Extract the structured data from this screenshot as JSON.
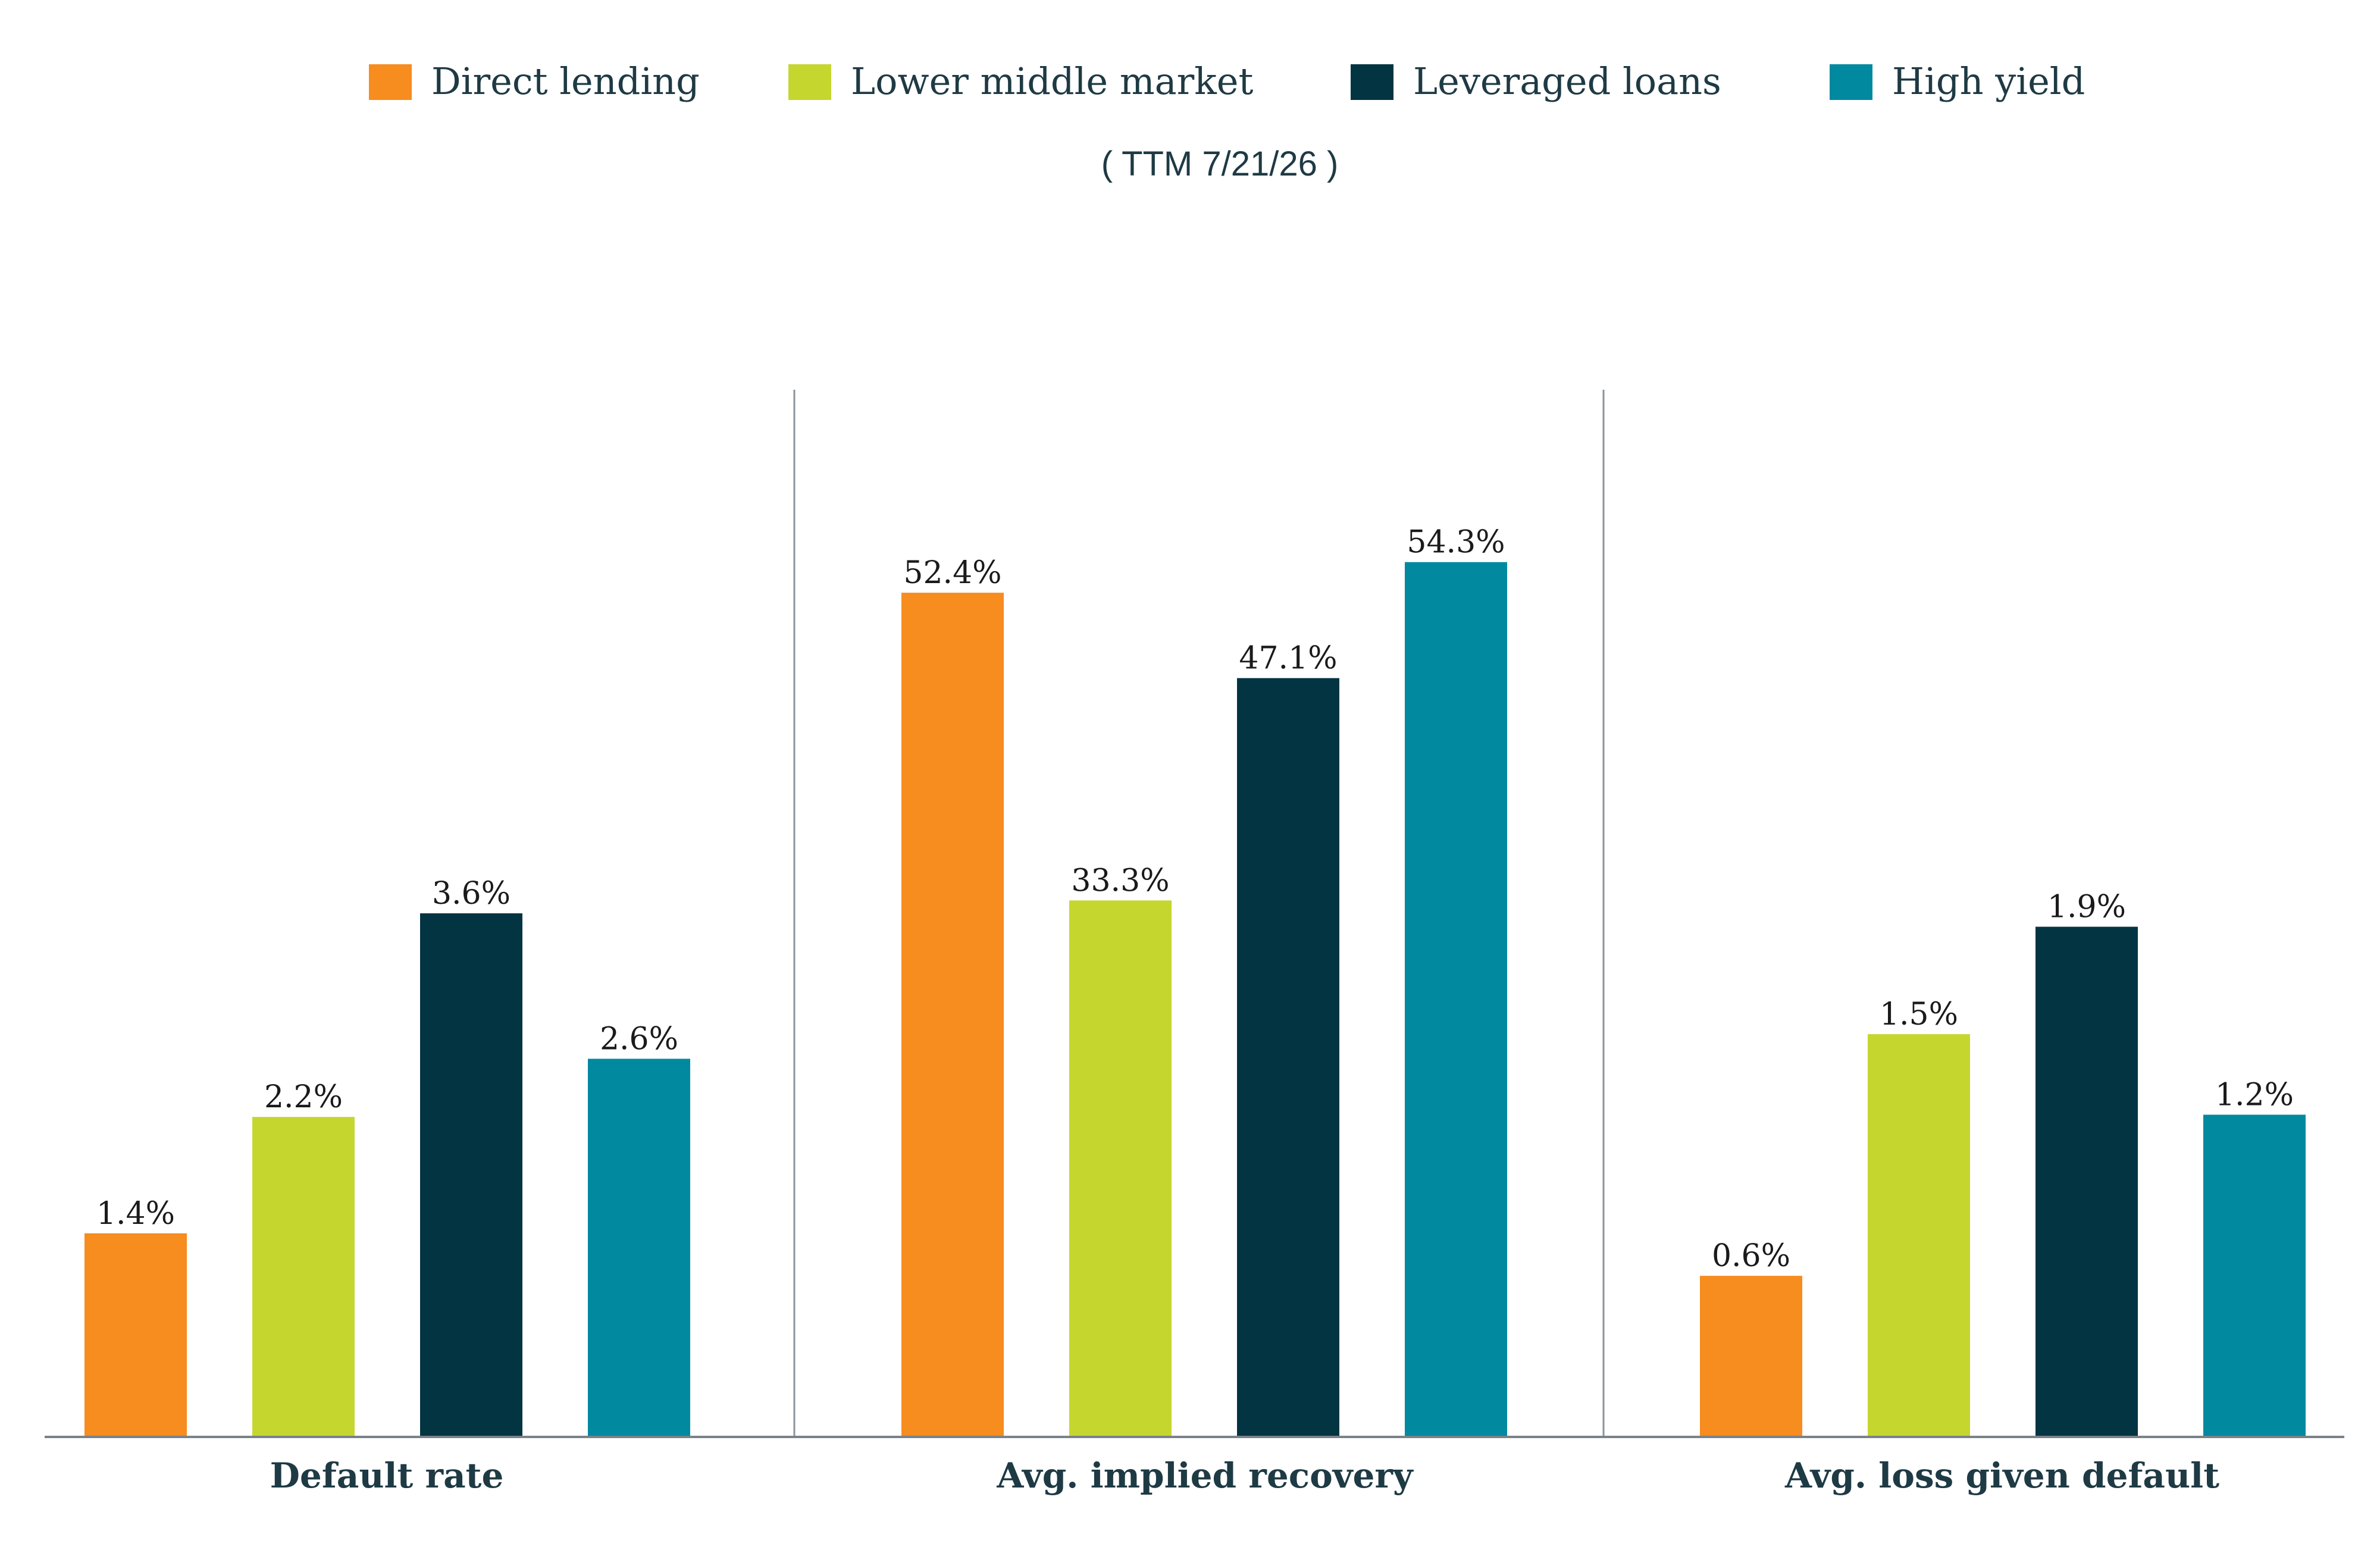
{
  "chart_data": {
    "type": "bar",
    "subtitle": "( TTM  7/21/26 )",
    "categories": [
      "Default rate",
      "Avg. implied recovery",
      "Avg. loss given default"
    ],
    "series": [
      {
        "name": "Direct lending",
        "color": "#f78c1f",
        "values": [
          1.4,
          52.4,
          0.6
        ],
        "labels": [
          "1.4%",
          "52.4%",
          "0.6%"
        ]
      },
      {
        "name": "Lower middle market",
        "color": "#c5d62f",
        "values": [
          2.2,
          33.3,
          1.5
        ],
        "labels": [
          "2.2%",
          "33.3%",
          "1.5%"
        ]
      },
      {
        "name": "Leveraged loans",
        "color": "#023442",
        "values": [
          3.6,
          47.1,
          1.9
        ],
        "labels": [
          "3.6%",
          "47.1%",
          "1.9%"
        ]
      },
      {
        "name": "High yield",
        "color": "#00899f",
        "values": [
          2.6,
          54.3,
          1.2
        ],
        "labels": [
          "2.6%",
          "54.3%",
          "1.2%"
        ]
      }
    ],
    "panel_ylim": [
      [
        0,
        7.2
      ],
      [
        0,
        65
      ],
      [
        0,
        3.9
      ]
    ],
    "legend_position": "top-center",
    "grid": false
  }
}
